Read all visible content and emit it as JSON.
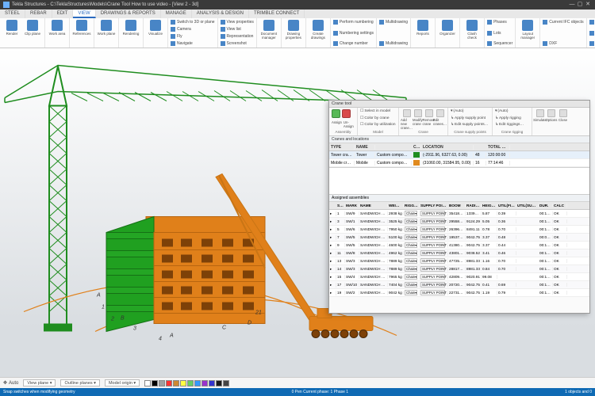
{
  "app": {
    "title": "Tekla Structures - C:\\TeklaStructures\\Models\\Crane Tool How to use video - [View 2 - 3d]"
  },
  "menubar": {
    "tabs": [
      "STEEL",
      "REBAR",
      "EDIT",
      "VIEW",
      "DRAWINGS & REPORTS",
      "MANAGE",
      "ANALYSIS & DESIGN",
      "TRIMBLE CONNECT"
    ],
    "active": 3
  },
  "ribbon": {
    "groups": [
      {
        "type": "big",
        "items": [
          {
            "label": "Render"
          },
          {
            "label": "Clip plane"
          }
        ]
      },
      {
        "type": "big",
        "items": [
          {
            "label": "Work area"
          }
        ]
      },
      {
        "type": "big",
        "items": [
          {
            "label": "References"
          }
        ]
      },
      {
        "type": "big",
        "items": [
          {
            "label": "Work plane"
          }
        ]
      },
      {
        "type": "big",
        "items": [
          {
            "label": "Rendering"
          }
        ]
      },
      {
        "type": "big",
        "items": [
          {
            "label": "Visualize"
          }
        ]
      },
      {
        "type": "stack",
        "lines": [
          "Switch to 3D or plane",
          "Camera",
          "Fly",
          "Navigate"
        ]
      },
      {
        "type": "stack",
        "lines": [
          "View properties",
          "View list",
          "Representation",
          "Screenshot"
        ]
      },
      {
        "type": "big",
        "items": [
          {
            "label": "Document manager"
          }
        ]
      },
      {
        "type": "big",
        "items": [
          {
            "label": "Drawing properties"
          }
        ]
      },
      {
        "type": "big",
        "items": [
          {
            "label": "Create drawings"
          }
        ]
      },
      {
        "type": "stack",
        "lines": [
          "Perform numbering",
          "Numbering settings",
          "Change number"
        ]
      },
      {
        "type": "stack",
        "lines": [
          "Multidrawing",
          "Multidrawing"
        ]
      },
      {
        "type": "big",
        "items": [
          {
            "label": "Reports"
          }
        ]
      },
      {
        "type": "big",
        "items": [
          {
            "label": "Organizer"
          }
        ]
      },
      {
        "type": "big",
        "items": [
          {
            "label": "Clash check"
          }
        ]
      },
      {
        "type": "stack",
        "lines": [
          "Phases",
          "Lots",
          "Sequencer"
        ]
      },
      {
        "type": "big",
        "items": [
          {
            "label": "Layout manager"
          }
        ]
      },
      {
        "type": "stack",
        "lines": [
          "Current IFC objects",
          "DXF"
        ]
      },
      {
        "type": "stack",
        "lines": [
          "Locks",
          "Inquire",
          "Project status"
        ]
      }
    ]
  },
  "crane_panel": {
    "title": "Crane tool",
    "yes_label": "Assign",
    "no_label": "Un-Assign",
    "groups": [
      {
        "hdr": "Assembly",
        "lines": []
      },
      {
        "hdr": "Model",
        "lines": [
          "Select in model",
          "Color by crane",
          "Color by utilization"
        ]
      },
      {
        "hdr": "Crane",
        "items": [
          "Add new crane…",
          "Modify crane",
          "Remove crane",
          "Edit cranes…"
        ]
      },
      {
        "hdr": "Crane supply points",
        "lines": [
          "(Auto)",
          "Apply supply point",
          "Edit supply points…"
        ]
      },
      {
        "hdr": "Crane rigging",
        "lines": [
          "(Auto)",
          "Apply rigging",
          "Edit riggings…"
        ]
      },
      {
        "hdr": "",
        "items": [
          "Simulate",
          "Options",
          "Close"
        ]
      }
    ],
    "cranes_header": "Cranes and locations",
    "cranes_cols": [
      "TYPE",
      "NAME",
      "",
      "COLOR",
      "LOCATION",
      "",
      "TOTAL DUR."
    ],
    "cranes_rows": [
      {
        "type": "Tower crane",
        "name": "Tower",
        "fam": "Custom component",
        "color": "#1f8d1f",
        "loc": "(-2911.96, 6327.63, 0.00)",
        "idx": "48",
        "dur": "120:00:00",
        "sel": true
      },
      {
        "type": "Mobile crane",
        "name": "Mobile",
        "fam": "Custom component",
        "color": "#e08a1f",
        "loc": "(31060.00, 31584.95, 0.00)",
        "idx": "16",
        "dur": "77:14:46",
        "sel": false
      }
    ],
    "assemblies_header": "Assigned assemblies",
    "asm_cols": [
      "",
      "SEQ.",
      "MARK",
      "NAME",
      "WEIGHT",
      "RIGGING",
      "SUPPLY POINT",
      "BOOM",
      "RADIUS",
      "HEIGHT",
      "UTIL(FINAL)",
      "UTIL(SUPPLY)",
      "DUR.",
      "CALC"
    ],
    "asm_rows": [
      {
        "seq": "1",
        "mark": "SW/9",
        "name": "SANDWICH WALL",
        "wt": "2938 kg",
        "rig": "Chain",
        "sp": "SUPPLY POINT A",
        "boom": "35418.26",
        "radius": "13397.92",
        "height": "5.87",
        "uf": "0.39",
        "us": "",
        "dur": "00:13:14",
        "calc": "OK"
      },
      {
        "seq": "3",
        "mark": "SW/1",
        "name": "SANDWICH WALL",
        "wt": "3525 kg",
        "rig": "Chain",
        "sp": "SUPPLY POINT A",
        "boom": "29558.51",
        "radius": "9124.29",
        "height": "5.05",
        "uf": "0.36",
        "us": "",
        "dur": "00:13:14",
        "calc": "OK"
      },
      {
        "seq": "5",
        "mark": "SW/6",
        "name": "SANDWICH WALL",
        "wt": "7950 kg",
        "rig": "Chain",
        "sp": "SUPPLY POINT A",
        "boom": "26396.02",
        "radius": "8491.11",
        "height": "0.78",
        "uf": "0.70",
        "us": "",
        "dur": "00:13:14",
        "calc": "OK"
      },
      {
        "seq": "7",
        "mark": "SW/5",
        "name": "SANDWICH WALL",
        "wt": "5100 kg",
        "rig": "Chain",
        "sp": "SUPPLY POINT A",
        "boom": "19537.19",
        "radius": "9042.75",
        "height": "3.37",
        "uf": "0.48",
        "us": "",
        "dur": "00:08:52",
        "calc": "OK"
      },
      {
        "seq": "9",
        "mark": "SW/5",
        "name": "SANDWICH WALL",
        "wt": "4600 kg",
        "rig": "Chain",
        "sp": "SUPPLY POINT A",
        "boom": "41380.74",
        "radius": "9042.75",
        "height": "3.37",
        "uf": "0.44",
        "us": "",
        "dur": "00:13:14",
        "calc": "OK"
      },
      {
        "seq": "11",
        "mark": "SW/8",
        "name": "SANDWICH WALL",
        "wt": "4962 kg",
        "rig": "Chain",
        "sp": "SUPPLY POINT A",
        "boom": "43801.03",
        "radius": "9038.52",
        "height": "3.41",
        "uf": "0.46",
        "us": "",
        "dur": "00:13:14",
        "calc": "OK"
      },
      {
        "seq": "13",
        "mark": "SW/3",
        "name": "SANDWICH WALL",
        "wt": "7889 kg",
        "rig": "Chain",
        "sp": "SUPPLY POINT A",
        "boom": "47725.78",
        "radius": "8981.33",
        "height": "1.16",
        "uf": "0.70",
        "us": "",
        "dur": "00:15:14",
        "calc": "OK"
      },
      {
        "seq": "14",
        "mark": "SW/3",
        "name": "SANDWICH WALL",
        "wt": "7889 kg",
        "rig": "Chain",
        "sp": "SUPPLY POINT A",
        "boom": "28817.92",
        "radius": "8981.33",
        "height": "0.84",
        "uf": "0.70",
        "us": "",
        "dur": "00:13:14",
        "calc": "OK"
      },
      {
        "seq": "15",
        "mark": "SW/4",
        "name": "SANDWICH WALL",
        "wt": "7965 kg",
        "rig": "Chain",
        "sp": "SUPPLY POINT A",
        "boom": "42809.60",
        "radius": "9020.91",
        "height": "99.08",
        "uf": "",
        "us": "",
        "dur": "00:19:14",
        "calc": "OK"
      },
      {
        "seq": "17",
        "mark": "SW/10",
        "name": "SANDWICH WALL",
        "wt": "7404 kg",
        "rig": "Chain",
        "sp": "SUPPLY POINT A",
        "boom": "20720.03",
        "radius": "9042.75",
        "height": "0.41",
        "uf": "0.69",
        "us": "",
        "dur": "00:13:14",
        "calc": "OK"
      },
      {
        "seq": "19",
        "mark": "SW/2",
        "name": "SANDWICH WALL",
        "wt": "9042 kg",
        "rig": "Chain",
        "sp": "SUPPLY POINT A",
        "boom": "22731.25",
        "radius": "9042.75",
        "height": "1.19",
        "uf": "0.79",
        "us": "",
        "dur": "00:13:14",
        "calc": "OK"
      }
    ]
  },
  "statusbar": {
    "auto": "Auto",
    "viewplane": "View plane ▾",
    "outline": "Outline planes ▾",
    "modelorigin": "Model origin ▾",
    "swatches": [
      "#ffffff",
      "#000000",
      "#a0a0a0",
      "#ff3333",
      "#cc8833",
      "#ffff44",
      "#66cc66",
      "#3399ff",
      "#9933cc",
      "#3333cc",
      "#191919",
      "#444"
    ],
    "footer_left": "Snap switches when modifying geometry",
    "footer_mid": "0 Pen    Current phase: 1 Phase 1",
    "footer_right": "1 objects and 0"
  },
  "scene": {
    "tower_color": "#1f8d1f",
    "mobile_color": "#e08a1f",
    "building_green": "#20a020",
    "building_orange": "#e0801a",
    "ground_line": "#e0801a"
  }
}
